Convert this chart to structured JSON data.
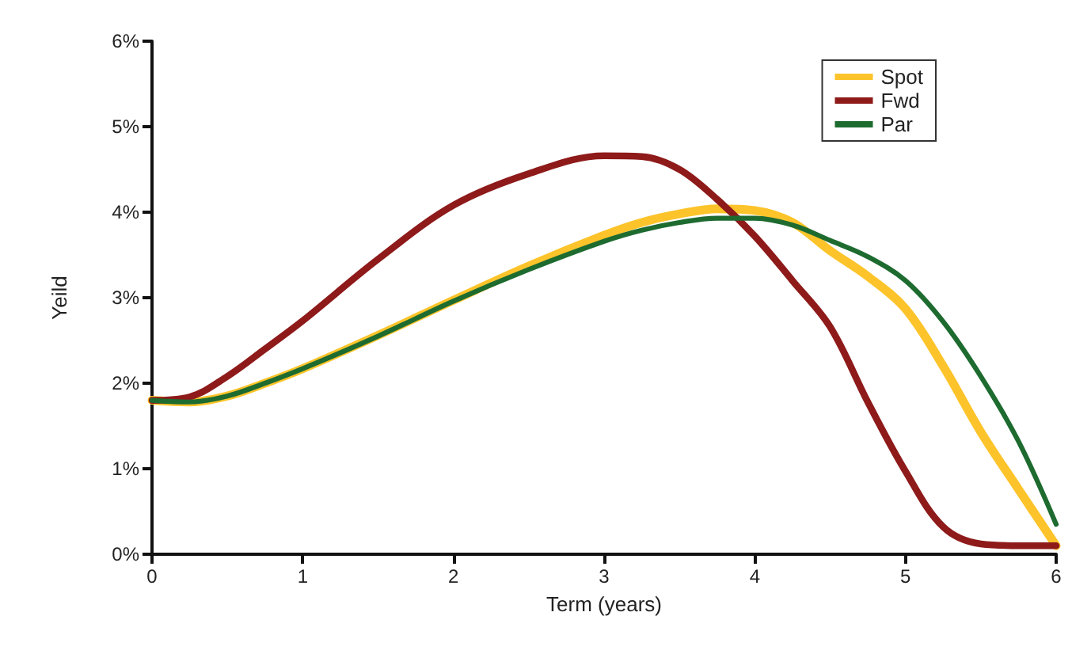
{
  "chart_data": {
    "type": "line",
    "xlabel": "Term (years)",
    "ylabel": "Yeild",
    "x": [
      0,
      0.25,
      0.5,
      0.75,
      1,
      1.5,
      2,
      2.5,
      3,
      3.25,
      3.5,
      3.75,
      4,
      4.25,
      4.5,
      4.75,
      5,
      5.25,
      5.5,
      5.75,
      6
    ],
    "series": [
      {
        "name": "Spot",
        "color": "#fcc42a",
        "values": [
          1.8,
          1.78,
          1.85,
          2.0,
          2.17,
          2.56,
          2.97,
          3.37,
          3.73,
          3.88,
          3.98,
          4.04,
          4.02,
          3.88,
          3.55,
          3.25,
          2.87,
          2.2,
          1.43,
          0.76,
          0.1
        ]
      },
      {
        "name": "Fwd",
        "color": "#8e1a1a",
        "values": [
          1.8,
          1.84,
          2.08,
          2.4,
          2.73,
          3.45,
          4.08,
          4.45,
          4.66,
          4.65,
          4.5,
          4.15,
          3.72,
          3.2,
          2.66,
          1.78,
          0.97,
          0.32,
          0.12,
          0.1,
          0.1
        ]
      },
      {
        "name": "Par",
        "color": "#1e6b30",
        "values": [
          1.8,
          1.78,
          1.85,
          2.0,
          2.17,
          2.55,
          2.96,
          3.33,
          3.66,
          3.79,
          3.88,
          3.93,
          3.93,
          3.85,
          3.67,
          3.48,
          3.2,
          2.72,
          2.08,
          1.32,
          0.35
        ]
      }
    ],
    "xlim": [
      0,
      6
    ],
    "xticks": [
      0,
      1,
      2,
      3,
      4,
      5,
      6
    ],
    "ylim": [
      0,
      6
    ],
    "yticks": [
      {
        "value": 0,
        "label": "0%"
      },
      {
        "value": 1,
        "label": "1%"
      },
      {
        "value": 2,
        "label": "2%"
      },
      {
        "value": 3,
        "label": "3%"
      },
      {
        "value": 4,
        "label": "4%"
      },
      {
        "value": 5,
        "label": "5%"
      },
      {
        "value": 6,
        "label": "6%"
      }
    ],
    "grid": false,
    "legend": "top right",
    "marker": "none",
    "line_style": "solid"
  }
}
